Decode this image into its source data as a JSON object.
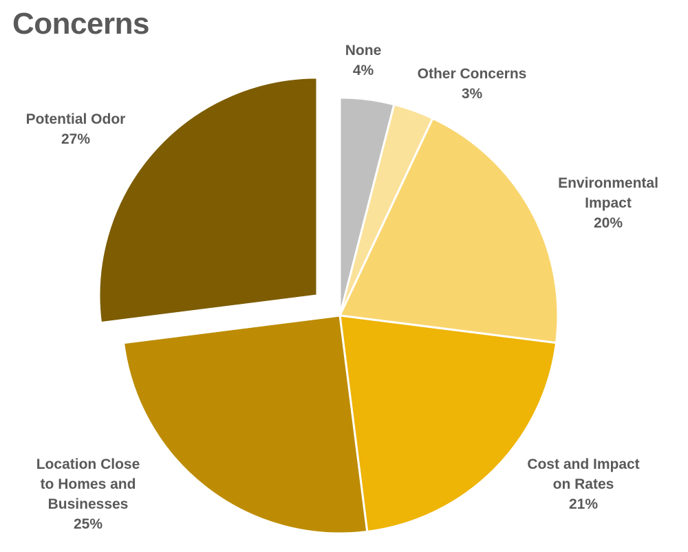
{
  "chart_data": {
    "type": "pie",
    "title": "Concerns",
    "slices": [
      {
        "label": "None",
        "value": 4,
        "pct_label": "4%",
        "color": "#bfbfbf",
        "exploded": false
      },
      {
        "label": "Other Concerns",
        "value": 3,
        "pct_label": "3%",
        "color": "#fbe29a",
        "exploded": false
      },
      {
        "label": "Environmental Impact",
        "value": 20,
        "pct_label": "20%",
        "color": "#f9d56e",
        "exploded": false
      },
      {
        "label": "Cost and Impact on Rates",
        "value": 21,
        "pct_label": "21%",
        "color": "#eeb406",
        "exploded": false
      },
      {
        "label": "Location Close to Homes and Businesses",
        "value": 25,
        "pct_label": "25%",
        "color": "#bd8c04",
        "exploded": false
      },
      {
        "label": "Potential Odor",
        "value": 27,
        "pct_label": "27%",
        "color": "#7d5c02",
        "exploded": true
      }
    ],
    "label_lines": [
      [
        "None",
        "4%"
      ],
      [
        "Other Concerns",
        "3%"
      ],
      [
        "Environmental",
        "Impact",
        "20%"
      ],
      [
        "Cost and Impact",
        "on Rates",
        "21%"
      ],
      [
        "Location Close",
        "to Homes and",
        "Businesses",
        "25%"
      ],
      [
        "Potential Odor",
        "27%"
      ]
    ],
    "legend": "none"
  }
}
